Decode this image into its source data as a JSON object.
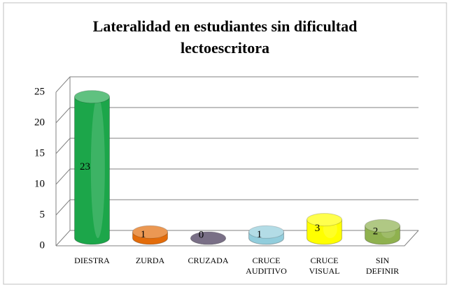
{
  "chart_data": {
    "type": "bar",
    "title": "Lateralidad  en estudiantes sin dificultad lectoescritora",
    "categories": [
      "DIESTRA",
      "ZURDA",
      "CRUZADA",
      "CRUCE AUDITIVO",
      "CRUCE VISUAL",
      "SIN DEFINIR"
    ],
    "values": [
      23,
      1,
      0,
      1,
      3,
      2
    ],
    "colors": [
      "#1ca64a",
      "#e36c0a",
      "#403152",
      "#92cddc",
      "#ffff00",
      "#8fb14f"
    ],
    "ylim": [
      0,
      25
    ],
    "yticks": [
      0,
      5,
      10,
      15,
      20,
      25
    ],
    "grid": true
  }
}
